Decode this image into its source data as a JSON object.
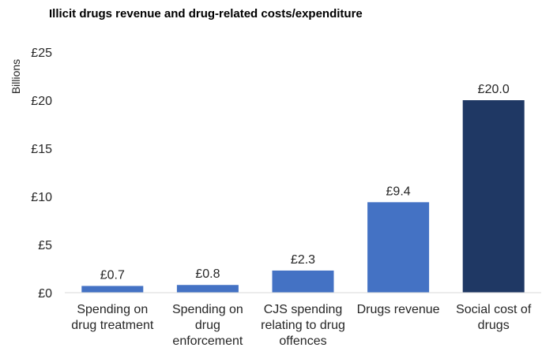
{
  "chart_data": {
    "type": "bar",
    "title": "Illicit drugs revenue and drug-related costs/expenditure",
    "ylabel": "Billions",
    "xlabel": "",
    "ylim": [
      0,
      25
    ],
    "yticks": [
      0,
      5,
      10,
      15,
      20,
      25
    ],
    "ytick_labels": [
      "£0",
      "£5",
      "£10",
      "£15",
      "£20",
      "£25"
    ],
    "categories": [
      [
        "Spending on",
        "drug treatment"
      ],
      [
        "Spending on",
        "drug",
        "enforcement"
      ],
      [
        "CJS spending",
        "relating to drug",
        "offences"
      ],
      [
        "Drugs revenue"
      ],
      [
        "Social cost of",
        "drugs"
      ]
    ],
    "values": [
      0.7,
      0.8,
      2.3,
      9.4,
      20.0
    ],
    "data_labels": [
      "£0.7",
      "£0.8",
      "£2.3",
      "£9.4",
      "£20.0"
    ],
    "bar_colors": [
      "#4472c4",
      "#4472c4",
      "#4472c4",
      "#4472c4",
      "#1f3864"
    ],
    "grid": false,
    "legend": "none"
  }
}
